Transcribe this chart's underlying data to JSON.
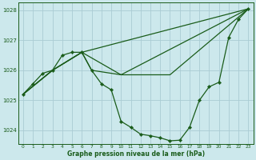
{
  "title": "Graphe pression niveau de la mer (hPa)",
  "bg_color": "#cce8ec",
  "grid_color": "#aaccd4",
  "line_color": "#1a5c1a",
  "xlim": [
    -0.5,
    23.5
  ],
  "ylim": [
    1023.55,
    1028.25
  ],
  "yticks": [
    1024,
    1025,
    1026,
    1027,
    1028
  ],
  "xticks": [
    0,
    1,
    2,
    3,
    4,
    5,
    6,
    7,
    8,
    9,
    10,
    11,
    12,
    13,
    14,
    15,
    16,
    17,
    18,
    19,
    20,
    21,
    22,
    23
  ],
  "series1_x": [
    0,
    1,
    2,
    3,
    4,
    5,
    6,
    7,
    8,
    9,
    10,
    11,
    12,
    13,
    14,
    15,
    16,
    17,
    18,
    19,
    20,
    21,
    22,
    23
  ],
  "series1_y": [
    1025.2,
    1025.55,
    1025.9,
    1026.0,
    1026.5,
    1026.6,
    1026.6,
    1026.0,
    1025.55,
    1025.35,
    1024.3,
    1024.1,
    1023.87,
    1023.82,
    1023.75,
    1023.65,
    1023.67,
    1024.1,
    1025.0,
    1025.45,
    1025.6,
    1027.1,
    1027.7,
    1028.05
  ],
  "line2_x": [
    0,
    3,
    6,
    23
  ],
  "line2_y": [
    1025.2,
    1026.0,
    1026.6,
    1028.05
  ],
  "line3_x": [
    0,
    3,
    6,
    10,
    23
  ],
  "line3_y": [
    1025.2,
    1026.0,
    1026.6,
    1025.85,
    1028.05
  ],
  "line4_x": [
    0,
    3,
    6,
    7,
    10,
    15,
    23
  ],
  "line4_y": [
    1025.2,
    1026.0,
    1026.6,
    1026.0,
    1025.85,
    1025.85,
    1028.05
  ],
  "figsize": [
    3.2,
    2.0
  ],
  "dpi": 100
}
